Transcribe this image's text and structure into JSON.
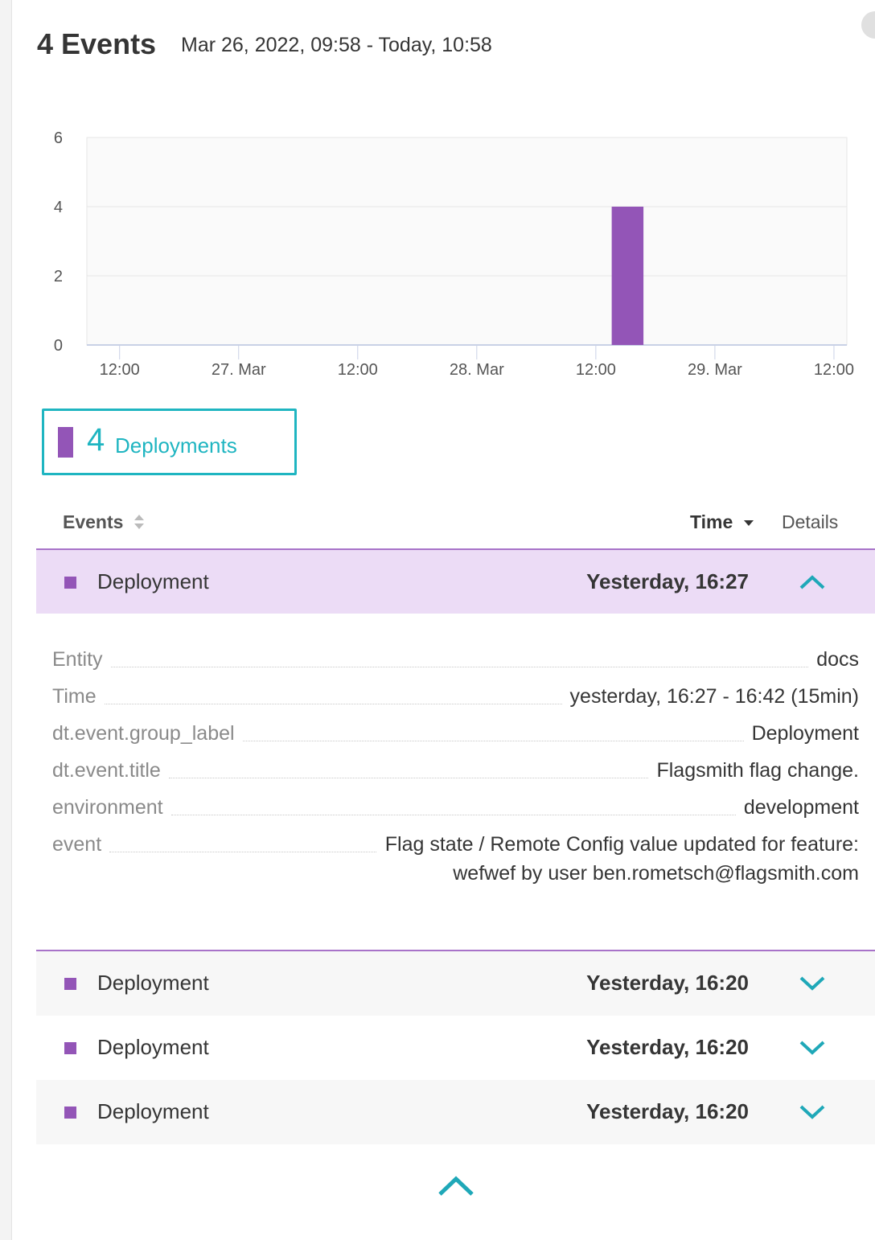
{
  "header": {
    "title": "4 Events",
    "range": "Mar 26, 2022, 09:58 - Today, 10:58"
  },
  "chart_data": {
    "type": "histogram",
    "bins": [
      61.6,
      64.8
    ],
    "values": [
      4
    ],
    "color": "#9355b7",
    "xlim": [
      8.7,
      85.3
    ],
    "xticks": [
      {
        "value": 12,
        "label": "12:00"
      },
      {
        "value": 24,
        "label": "27. Mar"
      },
      {
        "value": 36,
        "label": "12:00"
      },
      {
        "value": 48,
        "label": "28. Mar"
      },
      {
        "value": 60,
        "label": "12:00"
      },
      {
        "value": 72,
        "label": "29. Mar"
      },
      {
        "value": 84,
        "label": "12:00"
      }
    ],
    "ylim": [
      0,
      6
    ],
    "yticks": [
      0,
      2,
      4,
      6
    ],
    "grid": true
  },
  "legend": {
    "count": 4,
    "label": "Deployments",
    "color": "#9355b7"
  },
  "table": {
    "columns": [
      "Events",
      "Time",
      "Details"
    ],
    "rows": [
      {
        "event": "Deployment",
        "time": "Yesterday, 16:27"
      },
      {
        "event": "Deployment",
        "time": "Yesterday, 16:20"
      },
      {
        "event": "Deployment",
        "time": "Yesterday, 16:20"
      },
      {
        "event": "Deployment",
        "time": "Yesterday, 16:20"
      }
    ]
  },
  "details": [
    {
      "key": "Entity",
      "value": "docs"
    },
    {
      "key": "Time",
      "value": "yesterday, 16:27 - 16:42 (15min)"
    },
    {
      "key": "dt.event.group_label",
      "value": "Deployment"
    },
    {
      "key": "dt.event.title",
      "value": "Flagsmith flag change."
    },
    {
      "key": "environment",
      "value": "development"
    },
    {
      "key": "event",
      "value": "Flag state / Remote Config value updated for feature: wefwef by user ben.rometsch@flagsmith.com"
    }
  ]
}
